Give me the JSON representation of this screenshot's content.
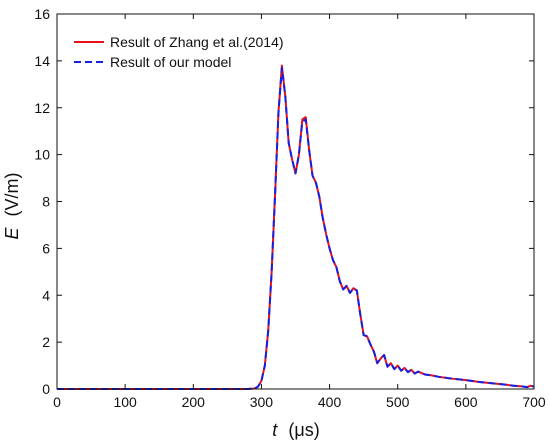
{
  "chart_data": {
    "type": "line",
    "title": "",
    "xlabel": {
      "symbol": "t",
      "unit": "(μs)"
    },
    "ylabel": {
      "symbol": "E",
      "unit": "(V/m)"
    },
    "xlim": [
      0,
      700
    ],
    "ylim": [
      0,
      16
    ],
    "xticks": [
      0,
      100,
      200,
      300,
      400,
      500,
      600,
      700
    ],
    "yticks": [
      0,
      2,
      4,
      6,
      8,
      10,
      12,
      14,
      16
    ],
    "grid": false,
    "legend_position": "top-left",
    "x": [
      0,
      200,
      280,
      290,
      295,
      300,
      305,
      310,
      315,
      320,
      325,
      330,
      335,
      340,
      345,
      350,
      355,
      360,
      365,
      370,
      375,
      380,
      385,
      390,
      395,
      400,
      405,
      410,
      415,
      420,
      425,
      430,
      435,
      440,
      445,
      450,
      455,
      460,
      465,
      470,
      475,
      480,
      485,
      490,
      495,
      500,
      505,
      510,
      515,
      520,
      525,
      530,
      540,
      550,
      560,
      570,
      580,
      600,
      620,
      640,
      660,
      670,
      680,
      690,
      695,
      700
    ],
    "series": [
      {
        "name": "Result of Zhang et al.(2014)",
        "color": "#e8101a",
        "dash": "solid",
        "values": [
          0,
          0,
          0,
          0.02,
          0.1,
          0.35,
          1.0,
          2.5,
          5.0,
          8.3,
          11.8,
          13.8,
          12.5,
          10.5,
          9.8,
          9.2,
          10.0,
          11.5,
          11.6,
          10.2,
          9.1,
          8.8,
          8.2,
          7.3,
          6.6,
          6.0,
          5.5,
          5.2,
          4.6,
          4.25,
          4.4,
          4.1,
          4.3,
          4.2,
          3.2,
          2.3,
          2.25,
          1.9,
          1.6,
          1.1,
          1.3,
          1.45,
          0.95,
          1.1,
          0.85,
          1.0,
          0.78,
          0.9,
          0.72,
          0.82,
          0.66,
          0.74,
          0.62,
          0.58,
          0.52,
          0.48,
          0.44,
          0.38,
          0.3,
          0.24,
          0.18,
          0.14,
          0.12,
          0.08,
          0.14,
          0.1
        ]
      },
      {
        "name": "Result of our model",
        "color": "#1520e0",
        "dash": "dashed",
        "values": [
          0,
          0,
          0,
          0.02,
          0.1,
          0.35,
          1.0,
          2.5,
          5.0,
          8.3,
          11.8,
          13.7,
          12.5,
          10.5,
          9.8,
          9.2,
          10.0,
          11.4,
          11.5,
          10.2,
          9.1,
          8.8,
          8.2,
          7.3,
          6.6,
          6.0,
          5.5,
          5.2,
          4.6,
          4.25,
          4.4,
          4.1,
          4.3,
          4.2,
          3.2,
          2.3,
          2.25,
          1.9,
          1.6,
          1.1,
          1.3,
          1.45,
          0.95,
          1.1,
          0.85,
          1.0,
          0.78,
          0.9,
          0.72,
          0.82,
          0.66,
          0.74,
          0.62,
          0.58,
          0.52,
          0.48,
          0.44,
          0.38,
          0.3,
          0.24,
          0.18,
          0.14,
          0.12,
          0.08,
          0.14,
          0.1
        ]
      }
    ]
  }
}
